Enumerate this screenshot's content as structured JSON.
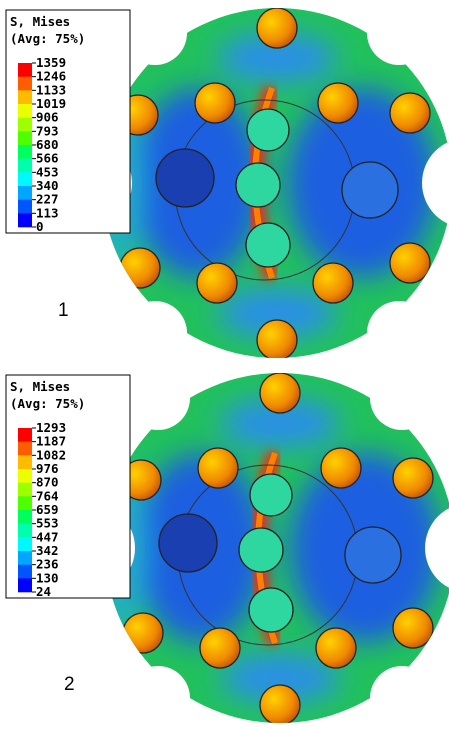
{
  "panels": [
    {
      "legend": {
        "title": "S, Mises",
        "subtitle": "(Avg: 75%)",
        "levels": [
          "1359",
          "1246",
          "1133",
          "1019",
          "906",
          "793",
          "680",
          "566",
          "453",
          "340",
          "227",
          "113",
          "0"
        ]
      },
      "label": "1"
    },
    {
      "legend": {
        "title": "S, Mises",
        "subtitle": "(Avg: 75%)",
        "levels": [
          "1293",
          "1187",
          "1082",
          "976",
          "870",
          "764",
          "659",
          "553",
          "447",
          "342",
          "236",
          "130",
          "24"
        ]
      },
      "label": "2"
    }
  ]
}
